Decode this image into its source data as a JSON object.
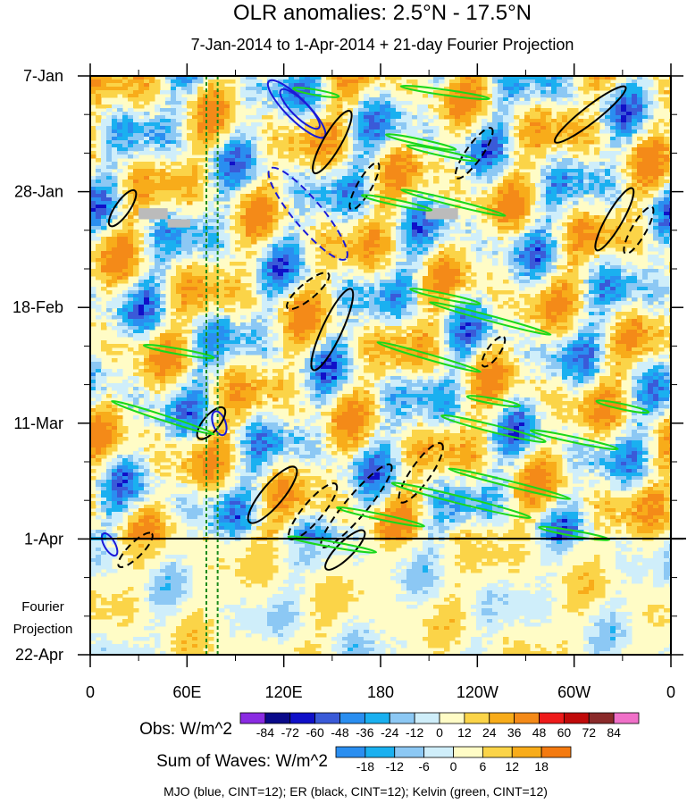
{
  "title": "OLR anomalies: 2.5°N - 17.5°N",
  "subtitle": "7-Jan-2014 to 1-Apr-2014 + 21-day Fourier Projection",
  "chart_data": {
    "type": "heatmap",
    "title": "OLR anomalies: 2.5°N - 17.5°N",
    "subtitle": "7-Jan-2014 to 1-Apr-2014 + 21-day Fourier Projection",
    "x_axis": {
      "ticks": [
        {
          "lon": 0,
          "label": "0"
        },
        {
          "lon": 60,
          "label": "60E"
        },
        {
          "lon": 120,
          "label": "120E"
        },
        {
          "lon": 180,
          "label": "180"
        },
        {
          "lon": 240,
          "label": "120W"
        },
        {
          "lon": 300,
          "label": "60W"
        },
        {
          "lon": 360,
          "label": "0"
        }
      ],
      "range": [
        0,
        360
      ]
    },
    "y_axis": {
      "ticks": [
        {
          "day": 0,
          "label": "7-Jan"
        },
        {
          "day": 21,
          "label": "28-Jan"
        },
        {
          "day": 42,
          "label": "18-Feb"
        },
        {
          "day": 63,
          "label": "11-Mar"
        },
        {
          "day": 84,
          "label": "1-Apr"
        },
        {
          "day": 105,
          "label": "22-Apr"
        }
      ],
      "range": [
        0,
        105
      ],
      "inverted": true
    },
    "projection_label": [
      "Fourier",
      "Projection"
    ],
    "obs_cutoff_label": "1-Apr",
    "reference_lines": [
      {
        "lon": 72,
        "style": "dashed",
        "color": "#1a8a1a"
      },
      {
        "lon": 79,
        "style": "dashed",
        "color": "#1a8a1a"
      }
    ],
    "obs_legend": {
      "title": "Obs: W/m^2",
      "levels": [
        "-84",
        "-72",
        "-60",
        "-48",
        "-36",
        "-24",
        "-12",
        "0",
        "12",
        "24",
        "36",
        "48",
        "60",
        "72",
        "84"
      ],
      "colors": [
        "#8a2be2",
        "#0a0a8a",
        "#1010c8",
        "#3a5ad8",
        "#2a8ef0",
        "#1ab0f0",
        "#8cc8f4",
        "#cfeefa",
        "#fffcc6",
        "#fbd448",
        "#f8ac1a",
        "#f48a18",
        "#ee1a1a",
        "#c00a0a",
        "#8a2a2a",
        "#f070c8"
      ]
    },
    "waves_legend": {
      "title": "Sum of Waves: W/m^2",
      "levels": [
        "-18",
        "-12",
        "-6",
        "0",
        "6",
        "12",
        "18"
      ],
      "colors": [
        "#2a8ef0",
        "#1ab0f0",
        "#8cc8f4",
        "#cfeefa",
        "#fffcc6",
        "#fbd448",
        "#f8ac1a",
        "#f47a10"
      ]
    },
    "contour_note": "MJO (blue, CINT=12); ER (black, CINT=12); Kelvin (green, CINT=12)",
    "contours": {
      "mjo": {
        "color": "#1a1ad8"
      },
      "er": {
        "color": "#000000"
      },
      "kelvin": {
        "color": "#1ad81a"
      }
    },
    "missing_color": "#bbbbbb"
  }
}
